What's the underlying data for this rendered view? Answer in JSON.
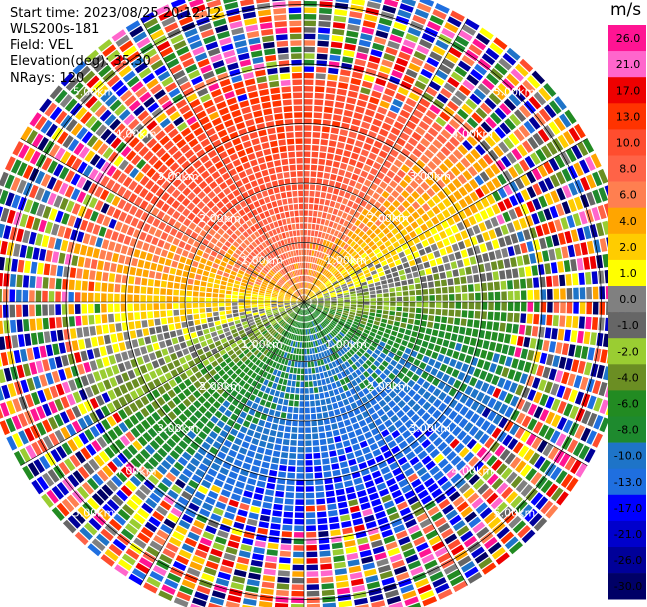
{
  "header": {
    "start_time": "Start time: 2023/08/25 20:12:12",
    "instrument": "WLS200s-181",
    "field": "Field: VEL",
    "elevation": "Elevation(deg): 35.30",
    "nrays": "NRays: 120"
  },
  "colorbar": {
    "unit": "m/s",
    "labels": [
      "26.0",
      "21.0",
      "17.0",
      "13.0",
      "10.0",
      "8.0",
      "6.0",
      "4.0",
      "2.0",
      "1.0",
      "0.0",
      "-1.0",
      "-2.0",
      "-4.0",
      "-6.0",
      "-8.0",
      "-10.0",
      "-13.0",
      "-17.0",
      "-21.0",
      "-26.0",
      "-30.0"
    ],
    "colors": [
      "#ff1493",
      "#ff66cc",
      "#ee0000",
      "#ff3300",
      "#ff4d2e",
      "#ff6347",
      "#ff7f50",
      "#ffa500",
      "#ffcc00",
      "#ffff00",
      "#808080",
      "#666666",
      "#9acd32",
      "#6b8e23",
      "#228b22",
      "#1e8a2e",
      "#1e74c8",
      "#1f6fe0",
      "#0000ff",
      "#0000cc",
      "#000099",
      "#000066"
    ]
  },
  "chart_data": {
    "type": "heatmap",
    "description_of_field": "PPI radial velocity",
    "range_rings_km": [
      1,
      2,
      3,
      4,
      5
    ],
    "ring_labels": [
      "1.00km",
      "2.00km",
      "3.00km",
      "4.00km",
      "5.00km"
    ],
    "nrays": 120,
    "max_range_km": 5.5,
    "spokes_deg": [
      0,
      30,
      60,
      90,
      120,
      150,
      180,
      210,
      240,
      270,
      300,
      330
    ],
    "velocity_pattern": {
      "positive_max_bearing_deg": 345,
      "negative_max_bearing_deg": 165,
      "near_range_amplitude_ms": 6,
      "far_range_amplitude_ms": 14,
      "noise_start_km": 3.4
    }
  }
}
